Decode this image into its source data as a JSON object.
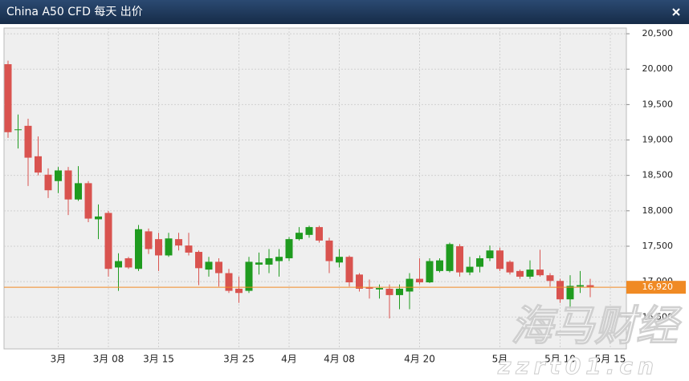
{
  "chart_data": {
    "type": "candlestick",
    "title": "China A50 CFD 每天 出价",
    "categories": [
      null,
      null,
      null,
      null,
      null,
      "3月",
      null,
      null,
      null,
      null,
      "3月 08",
      null,
      null,
      null,
      null,
      "3月 15",
      null,
      null,
      null,
      null,
      null,
      null,
      null,
      "3月 25",
      null,
      null,
      null,
      null,
      "4月",
      null,
      null,
      null,
      null,
      "4月 08",
      null,
      null,
      null,
      null,
      null,
      null,
      null,
      "4月 20",
      null,
      null,
      null,
      null,
      null,
      null,
      null,
      "5月",
      null,
      null,
      null,
      null,
      null,
      "5月 10",
      null,
      null,
      null,
      null,
      "5月 15"
    ],
    "open": [
      20070,
      19140,
      19200,
      18770,
      18510,
      18420,
      18570,
      18160,
      18390,
      17880,
      17970,
      17200,
      17330,
      17180,
      17710,
      17600,
      17370,
      17600,
      17510,
      17420,
      17170,
      17280,
      17120,
      16900,
      16870,
      17240,
      17240,
      17290,
      17330,
      17600,
      17660,
      17770,
      17580,
      17270,
      17350,
      17100,
      16920,
      16890,
      16900,
      16810,
      16860,
      17040,
      16990,
      17150,
      17150,
      17500,
      17130,
      17210,
      17330,
      17440,
      17280,
      17150,
      17070,
      17170,
      17090,
      17010,
      16750,
      16930,
      16950,
      null,
      null
    ],
    "high": [
      20120,
      19360,
      19300,
      19050,
      18600,
      18620,
      18620,
      18630,
      18420,
      18090,
      18000,
      17400,
      17350,
      17800,
      17750,
      17690,
      17690,
      17690,
      17690,
      17440,
      17350,
      17330,
      17180,
      17070,
      17350,
      17410,
      17460,
      17460,
      17630,
      17770,
      17790,
      17790,
      17620,
      17460,
      17370,
      17120,
      17030,
      16960,
      16960,
      16960,
      17120,
      17330,
      17330,
      17330,
      17550,
      17530,
      17350,
      17370,
      17510,
      17480,
      17300,
      17170,
      17300,
      17450,
      17120,
      17040,
      17090,
      17150,
      17040,
      null,
      null
    ],
    "low": [
      19030,
      18880,
      18350,
      18500,
      18180,
      18250,
      17940,
      18140,
      17840,
      17600,
      17070,
      16870,
      17180,
      17150,
      17390,
      17150,
      17350,
      17440,
      17370,
      16950,
      17070,
      16930,
      16840,
      16700,
      16840,
      17100,
      17120,
      17070,
      17290,
      17580,
      17620,
      17550,
      17120,
      17200,
      16930,
      16860,
      16760,
      16760,
      16480,
      16610,
      16610,
      16960,
      16980,
      17130,
      17130,
      17070,
      17090,
      17130,
      17290,
      17150,
      17100,
      17040,
      17040,
      17070,
      16930,
      16700,
      16610,
      16840,
      16780,
      null,
      null
    ],
    "close": [
      19110,
      19150,
      18750,
      18540,
      18290,
      18570,
      18160,
      18390,
      17890,
      17920,
      17180,
      17290,
      17200,
      17740,
      17460,
      17370,
      17610,
      17510,
      17410,
      17190,
      17280,
      17120,
      16870,
      16840,
      17280,
      17270,
      17330,
      17350,
      17600,
      17690,
      17770,
      17580,
      17290,
      17350,
      16990,
      16900,
      16900,
      16910,
      16810,
      16900,
      17040,
      16990,
      17290,
      17300,
      17530,
      17130,
      17210,
      17330,
      17440,
      17180,
      17130,
      17070,
      17170,
      17090,
      17010,
      16750,
      16940,
      16950,
      16920,
      null,
      null
    ],
    "up_color": "#1f9b1f",
    "down_color": "#d9534f",
    "ylim": [
      16050,
      20580
    ],
    "yticks": [
      {
        "value": 16500,
        "label": "16,500"
      },
      {
        "value": 17000,
        "label": "17,000"
      },
      {
        "value": 17500,
        "label": "17,500"
      },
      {
        "value": 18000,
        "label": "18,000"
      },
      {
        "value": 18500,
        "label": "18,500"
      },
      {
        "value": 19000,
        "label": "19,000"
      },
      {
        "value": 19500,
        "label": "19,500"
      },
      {
        "value": 20000,
        "label": "20,000"
      },
      {
        "value": 20500,
        "label": "20,500"
      }
    ],
    "grid": true,
    "last_price": {
      "value": 16920,
      "label": "16,920",
      "color": "#f08a24"
    },
    "watermark": {
      "name": "海马财经",
      "site": "zzrt01.cn"
    }
  }
}
